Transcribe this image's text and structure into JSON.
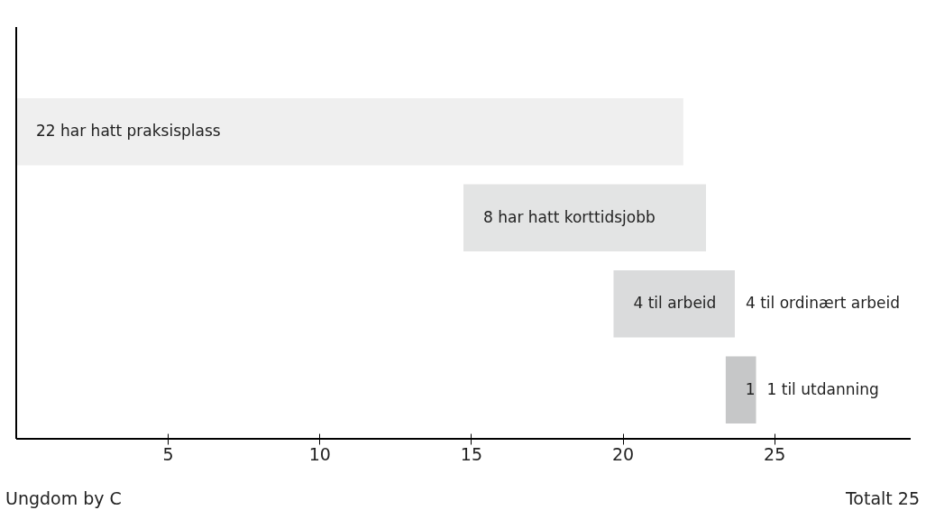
{
  "chart_data": {
    "type": "bar",
    "orientation": "horizontal",
    "categories": [
      null,
      null,
      null,
      null
    ],
    "values": [
      22,
      8,
      4,
      1
    ],
    "base": [
      0,
      14.75,
      19.7,
      23.4
    ],
    "colors": [
      "#efefef",
      "#e3e4e4",
      "#dadbdc",
      "#c6c7c8"
    ],
    "value_labels": [
      "22 har hatt praksisplass",
      "8 har hatt korttidsjobb",
      "4 til arbeid",
      "1"
    ],
    "xlim": [
      0,
      29.5
    ],
    "xticks": [
      5,
      10,
      15,
      20,
      25
    ],
    "tick_labels": "x",
    "grid": false,
    "annotations": [
      "4 til ordinært arbeid",
      "1 til utdanning",
      "Ungdom by C",
      "Totalt 25"
    ]
  }
}
